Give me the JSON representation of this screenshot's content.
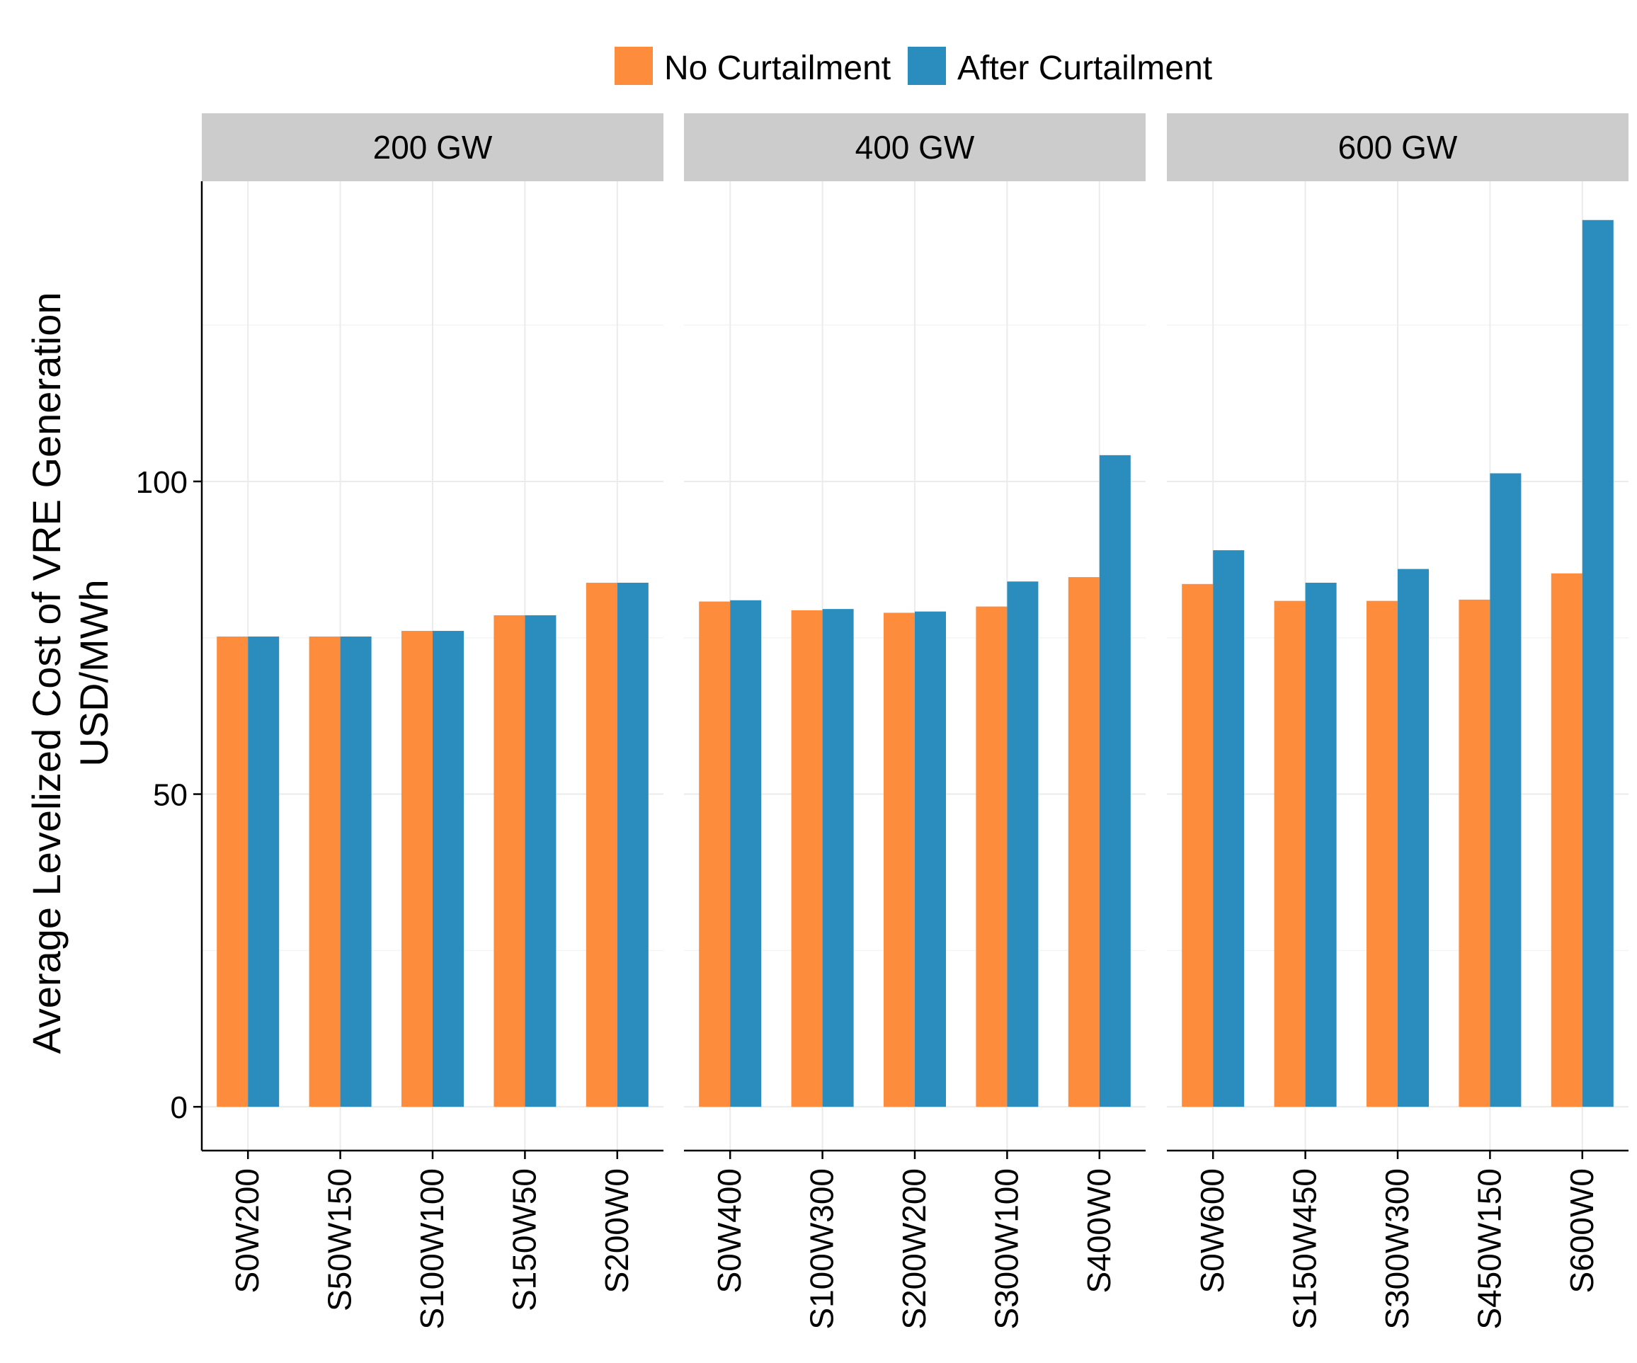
{
  "chart_data": {
    "type": "bar",
    "ylabel_line1": "Average Levelized Cost of VRE Generation",
    "ylabel_line2": "USD/MWh",
    "xlabel": "",
    "ylim": [
      -7,
      148
    ],
    "yticks": [
      0,
      50,
      100
    ],
    "grid": true,
    "legend_position": "top",
    "series": [
      {
        "name": "No Curtailment",
        "color": "#FD8D3C"
      },
      {
        "name": "After Curtailment",
        "color": "#2B8CBE"
      }
    ],
    "panels": [
      {
        "label": "200 GW",
        "categories": [
          "S0W200",
          "S50W150",
          "S100W100",
          "S150W50",
          "S200W0"
        ],
        "values": [
          [
            75.2,
            75.2,
            76.1,
            78.6,
            83.8
          ],
          [
            75.2,
            75.2,
            76.1,
            78.6,
            83.8
          ]
        ]
      },
      {
        "label": "400 GW",
        "categories": [
          "S0W400",
          "S100W300",
          "S200W200",
          "S300W100",
          "S400W0"
        ],
        "values": [
          [
            80.8,
            79.4,
            79.0,
            80.0,
            84.7
          ],
          [
            81.0,
            79.6,
            79.2,
            84.0,
            104.2
          ]
        ]
      },
      {
        "label": "600 GW",
        "categories": [
          "S0W600",
          "S150W450",
          "S300W300",
          "S450W150",
          "S600W0"
        ],
        "values": [
          [
            83.6,
            80.9,
            80.9,
            81.1,
            85.3
          ],
          [
            89.0,
            83.8,
            86.0,
            101.3,
            141.8
          ]
        ]
      }
    ]
  }
}
